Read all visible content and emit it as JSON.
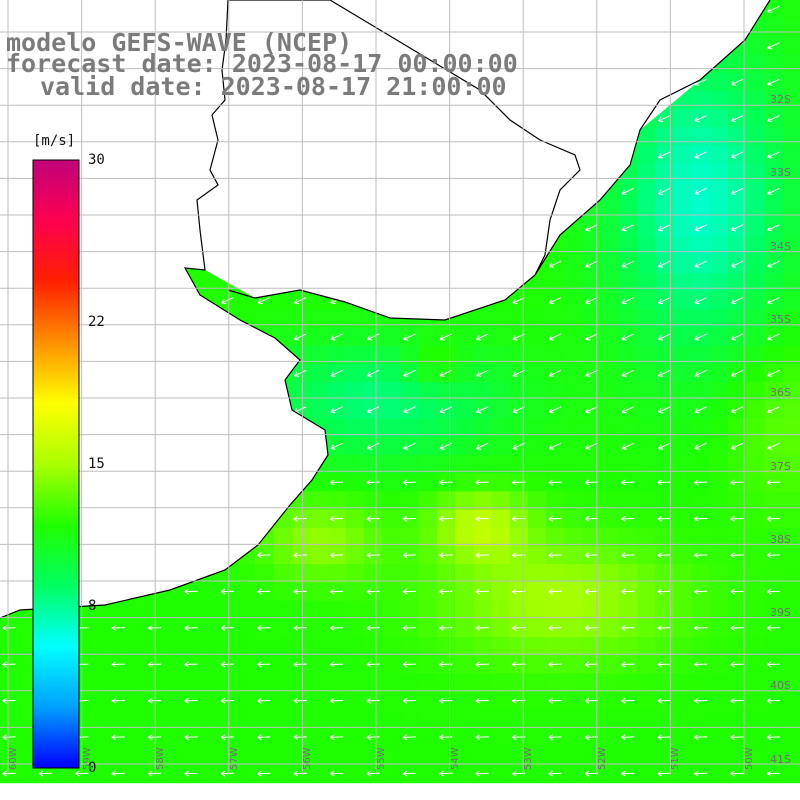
{
  "title": {
    "model": "modelo GEFS-WAVE (NCEP)",
    "forecast": "forecast date: 2023-08-17 00:00:00",
    "valid": "valid date: 2023-08-17 21:00:00"
  },
  "colorbar": {
    "units": "[m/s]",
    "min": 0,
    "max": 30,
    "ticks": [
      {
        "value": 30,
        "label": "30"
      },
      {
        "value": 22,
        "label": "22"
      },
      {
        "value": 15,
        "label": "15"
      },
      {
        "value": 8,
        "label": "8"
      },
      {
        "value": 0,
        "label": "0"
      }
    ],
    "gradient_colors": [
      "#0000ff",
      "#00a0ff",
      "#00ffff",
      "#00ff60",
      "#20ff00",
      "#aaff00",
      "#ffff00",
      "#ff9000",
      "#ff2000",
      "#ff0050",
      "#c0007a"
    ]
  },
  "map": {
    "grid_color": "#bdbdbd",
    "land_color": "#ffffff",
    "coastline_color": "#000000",
    "wind_arrow_color": "#ffffff",
    "dominant_wind_direction": "from east / northeast",
    "latitude_labels": [
      "32S",
      "33S",
      "34S",
      "35S",
      "36S",
      "37S",
      "38S",
      "39S",
      "40S",
      "41S"
    ],
    "longitude_labels": [
      "60W",
      "59W",
      "58W",
      "57W",
      "56W",
      "55W",
      "54W",
      "53W",
      "52W",
      "51W",
      "50W"
    ]
  }
}
